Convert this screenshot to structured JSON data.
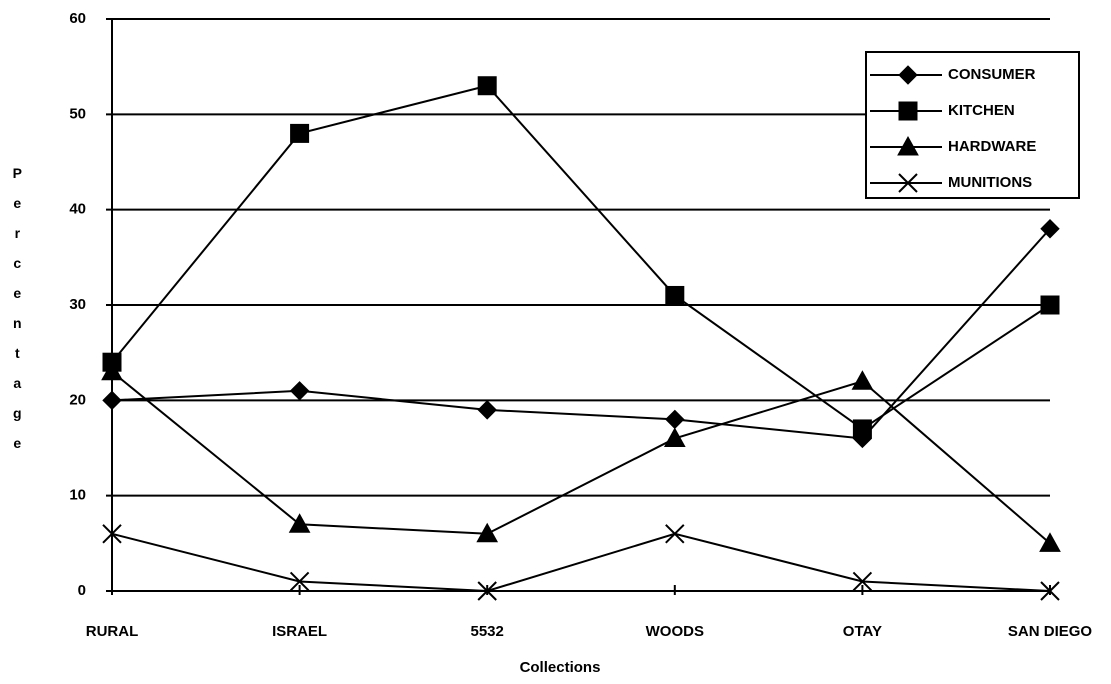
{
  "chart_data": {
    "type": "line",
    "x_label": "Collections",
    "y_label": "Percentage",
    "categories": [
      "RURAL",
      "ISRAEL",
      "5532",
      "WOODS",
      "OTAY",
      "SAN DIEGO"
    ],
    "series": [
      {
        "name": "CONSUMER",
        "color": "#000000",
        "marker": "diamond",
        "values": [
          20,
          21,
          19,
          18,
          16,
          38
        ]
      },
      {
        "name": "KITCHEN",
        "color": "#000000",
        "marker": "square",
        "values": [
          24,
          48,
          53,
          31,
          17,
          30
        ]
      },
      {
        "name": "HARDWARE",
        "color": "#000000",
        "marker": "triangle",
        "values": [
          23,
          7,
          6,
          16,
          22,
          5
        ]
      },
      {
        "name": "MUNITIONS",
        "color": "#000000",
        "marker": "x",
        "values": [
          6,
          1,
          0,
          6,
          1,
          0
        ]
      }
    ],
    "ylim": [
      0,
      60
    ],
    "yticks": [
      0,
      10,
      20,
      30,
      40,
      50,
      60
    ],
    "grid": true,
    "legend": "upper right"
  }
}
